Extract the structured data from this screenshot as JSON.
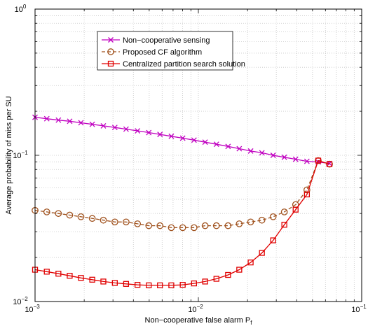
{
  "chart_data": {
    "type": "line",
    "xlabel": "Non−cooperative false alarm P",
    "xlabel_sub": "f",
    "ylabel": "Average probability of miss per SU",
    "x_scale": "log",
    "y_scale": "log",
    "xlim": [
      0.001,
      0.1
    ],
    "ylim": [
      0.01,
      1
    ],
    "grid": true,
    "legend_position": "top-center",
    "x_ticks": [
      {
        "value": 0.001,
        "base": "10",
        "exp": "−3"
      },
      {
        "value": 0.01,
        "base": "10",
        "exp": "−2"
      },
      {
        "value": 0.1,
        "base": "10",
        "exp": "−1"
      }
    ],
    "y_ticks": [
      {
        "value": 0.01,
        "base": "10",
        "exp": "−2"
      },
      {
        "value": 0.1,
        "base": "10",
        "exp": "−1"
      },
      {
        "value": 1,
        "base": "10",
        "exp": "0"
      }
    ],
    "series": [
      {
        "name": "Non−cooperative sensing",
        "color": "#c000c0",
        "marker": "x",
        "linestyle": "solid",
        "x": [
          0.001,
          0.00118,
          0.00139,
          0.00163,
          0.00191,
          0.00224,
          0.00262,
          0.00308,
          0.00361,
          0.00424,
          0.00497,
          0.00582,
          0.00683,
          0.00802,
          0.00941,
          0.011,
          0.0129,
          0.0152,
          0.0178,
          0.0209,
          0.0245,
          0.0287,
          0.0336,
          0.0394,
          0.0462,
          0.0542,
          0.0635
        ],
        "y": [
          0.182,
          0.178,
          0.174,
          0.171,
          0.167,
          0.163,
          0.159,
          0.155,
          0.151,
          0.147,
          0.143,
          0.139,
          0.135,
          0.131,
          0.127,
          0.123,
          0.119,
          0.115,
          0.111,
          0.107,
          0.104,
          0.1,
          0.097,
          0.094,
          0.091,
          0.09,
          0.088
        ]
      },
      {
        "name": "Proposed CF algorithm",
        "color": "#a0521e",
        "marker": "o",
        "linestyle": "dashed",
        "x": [
          0.001,
          0.00118,
          0.00139,
          0.00163,
          0.00191,
          0.00224,
          0.00262,
          0.00308,
          0.00361,
          0.00424,
          0.00497,
          0.00582,
          0.00683,
          0.00802,
          0.00941,
          0.011,
          0.0129,
          0.0152,
          0.0178,
          0.0209,
          0.0245,
          0.0287,
          0.0336,
          0.0394,
          0.0462,
          0.0542,
          0.0635
        ],
        "y": [
          0.042,
          0.041,
          0.04,
          0.039,
          0.038,
          0.037,
          0.036,
          0.035,
          0.035,
          0.034,
          0.033,
          0.033,
          0.032,
          0.032,
          0.032,
          0.033,
          0.033,
          0.033,
          0.034,
          0.035,
          0.036,
          0.038,
          0.041,
          0.046,
          0.058,
          0.092,
          0.087
        ]
      },
      {
        "name": "Centralized partition search solution",
        "color": "#e00000",
        "marker": "s",
        "linestyle": "solid",
        "x": [
          0.001,
          0.00118,
          0.00139,
          0.00163,
          0.00191,
          0.00224,
          0.00262,
          0.00308,
          0.00361,
          0.00424,
          0.00497,
          0.00582,
          0.00683,
          0.00802,
          0.00941,
          0.011,
          0.0129,
          0.0152,
          0.0178,
          0.0209,
          0.0245,
          0.0287,
          0.0336,
          0.0394,
          0.0462,
          0.0542,
          0.0635
        ],
        "y": [
          0.0165,
          0.016,
          0.0155,
          0.015,
          0.0145,
          0.0141,
          0.0137,
          0.0134,
          0.0132,
          0.013,
          0.0129,
          0.0129,
          0.0129,
          0.013,
          0.0133,
          0.0137,
          0.0143,
          0.0152,
          0.0165,
          0.0185,
          0.0215,
          0.0262,
          0.0335,
          0.0425,
          0.054,
          0.092,
          0.087
        ]
      }
    ]
  }
}
